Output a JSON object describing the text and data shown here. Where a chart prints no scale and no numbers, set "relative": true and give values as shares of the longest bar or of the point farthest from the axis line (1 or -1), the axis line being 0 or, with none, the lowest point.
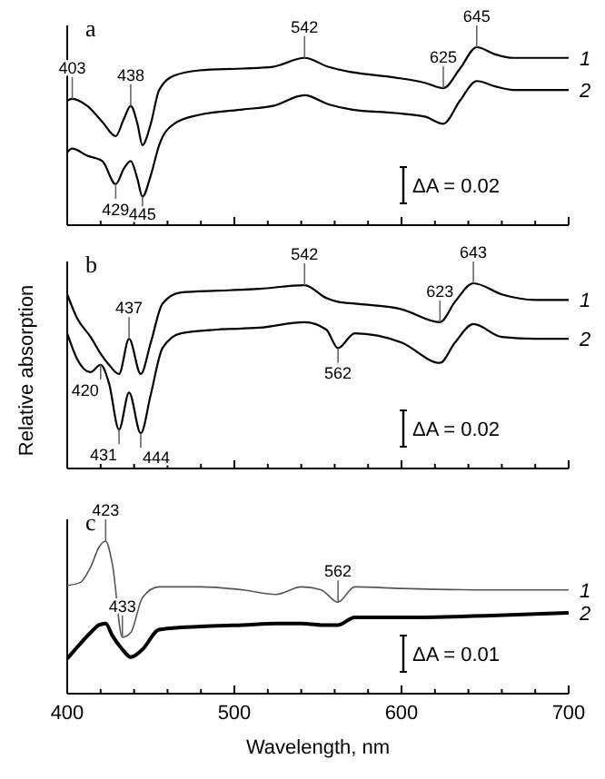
{
  "chart_data": [
    {
      "type": "line",
      "title": "a",
      "relative": true,
      "xlim": [
        400,
        700
      ],
      "tick_labels": false,
      "xticks": [
        400,
        {
          "value": 420,
          "label": null
        },
        {
          "value": 440,
          "label": null
        },
        {
          "value": 460,
          "label": null
        },
        {
          "value": 480,
          "label": null
        },
        500,
        {
          "value": 520,
          "label": null
        },
        {
          "value": 540,
          "label": null
        },
        {
          "value": 560,
          "label": null
        },
        {
          "value": 580,
          "label": null
        },
        600,
        {
          "value": 620,
          "label": null
        },
        {
          "value": 640,
          "label": null
        },
        {
          "value": 660,
          "label": null
        },
        {
          "value": 680,
          "label": null
        },
        700
      ],
      "x": [
        400,
        403,
        412,
        421,
        429,
        434,
        438,
        442,
        445,
        450,
        455,
        464,
        479,
        505,
        523,
        542,
        556,
        570,
        596,
        614,
        625,
        635,
        645,
        656,
        667,
        685,
        700
      ],
      "series": [
        {
          "name": "1",
          "color": "#000000",
          "values": [
            0.7,
            0.71,
            0.67,
            0.58,
            0.5,
            0.6,
            0.67,
            0.57,
            0.45,
            0.57,
            0.76,
            0.84,
            0.87,
            0.88,
            0.89,
            0.94,
            0.89,
            0.86,
            0.83,
            0.8,
            0.77,
            0.88,
            1.0,
            0.96,
            0.94,
            0.94,
            0.94
          ]
        },
        {
          "name": "2",
          "color": "#000000",
          "values": [
            0.41,
            0.43,
            0.39,
            0.36,
            0.23,
            0.32,
            0.36,
            0.26,
            0.16,
            0.28,
            0.45,
            0.57,
            0.62,
            0.65,
            0.67,
            0.73,
            0.68,
            0.65,
            0.63,
            0.61,
            0.57,
            0.7,
            0.81,
            0.78,
            0.76,
            0.76,
            0.76
          ]
        }
      ],
      "annotations": [
        {
          "text": "403",
          "x": 403,
          "y": 0.71
        },
        {
          "text": "438",
          "x": 438,
          "y": 0.67
        },
        {
          "text": "542",
          "x": 542,
          "y": 0.94
        },
        {
          "text": "625",
          "x": 625,
          "y": 0.77
        },
        {
          "text": "645",
          "x": 645,
          "y": 1.0
        },
        {
          "text": "429",
          "x": 429,
          "y": 0.23
        },
        {
          "text": "445",
          "x": 445,
          "y": 0.16
        },
        "ΔA = 0.02"
      ]
    },
    {
      "type": "line",
      "title": "b",
      "relative": true,
      "xlim": [
        400,
        700
      ],
      "tick_labels": false,
      "ylabel": "Relative absorption",
      "xticks": [
        400,
        {
          "value": 420,
          "label": null
        },
        {
          "value": 440,
          "label": null
        },
        {
          "value": 460,
          "label": null
        },
        {
          "value": 480,
          "label": null
        },
        500,
        {
          "value": 520,
          "label": null
        },
        {
          "value": 540,
          "label": null
        },
        {
          "value": 560,
          "label": null
        },
        {
          "value": 580,
          "label": null
        },
        600,
        {
          "value": 620,
          "label": null
        },
        {
          "value": 640,
          "label": null
        },
        {
          "value": 660,
          "label": null
        },
        {
          "value": 680,
          "label": null
        },
        700
      ],
      "x": [
        400,
        406,
        414,
        420,
        425,
        431,
        437,
        444,
        450,
        457,
        468,
        490,
        515,
        542,
        555,
        562,
        572,
        600,
        623,
        632,
        643,
        660,
        680,
        700
      ],
      "series": [
        {
          "name": "1",
          "color": "#000000",
          "values": [
            0.94,
            0.81,
            0.71,
            0.62,
            0.56,
            0.51,
            0.7,
            0.51,
            0.68,
            0.89,
            0.95,
            0.96,
            0.97,
            0.99,
            0.92,
            0.9,
            0.89,
            0.86,
            0.79,
            0.9,
            1.0,
            0.94,
            0.91,
            0.91
          ]
        },
        {
          "name": "2",
          "color": "#000000",
          "values": [
            0.73,
            0.59,
            0.52,
            0.56,
            0.46,
            0.21,
            0.41,
            0.19,
            0.4,
            0.65,
            0.73,
            0.75,
            0.76,
            0.79,
            0.75,
            0.65,
            0.73,
            0.68,
            0.57,
            0.68,
            0.78,
            0.71,
            0.7,
            0.7
          ]
        }
      ],
      "annotations": [
        {
          "text": "542",
          "x": 542,
          "y": 0.99
        },
        {
          "text": "437",
          "x": 437,
          "y": 0.7
        },
        {
          "text": "623",
          "x": 623,
          "y": 0.79
        },
        {
          "text": "643",
          "x": 643,
          "y": 1.0
        },
        {
          "text": "420",
          "x": 420,
          "y": 0.56
        },
        {
          "text": "431",
          "x": 431,
          "y": 0.21
        },
        {
          "text": "444",
          "x": 444,
          "y": 0.19
        },
        {
          "text": "562",
          "x": 562,
          "y": 0.65
        },
        "ΔA = 0.02"
      ]
    },
    {
      "type": "line",
      "title": "c",
      "relative": true,
      "xlim": [
        400,
        700
      ],
      "tick_labels": "x",
      "xlabel": "Wavelength, nm",
      "xticks": [
        400,
        {
          "value": 420,
          "label": null
        },
        {
          "value": 440,
          "label": null
        },
        {
          "value": 460,
          "label": null
        },
        {
          "value": 480,
          "label": null
        },
        500,
        {
          "value": 520,
          "label": null
        },
        {
          "value": 540,
          "label": null
        },
        {
          "value": 560,
          "label": null
        },
        {
          "value": 580,
          "label": null
        },
        600,
        {
          "value": 620,
          "label": null
        },
        {
          "value": 640,
          "label": null
        },
        {
          "value": 660,
          "label": null
        },
        {
          "value": 680,
          "label": null
        },
        700
      ],
      "x": [
        400,
        408,
        414,
        419,
        423,
        427,
        433,
        438,
        445,
        455,
        480,
        505,
        525,
        540,
        552,
        562,
        572,
        600,
        650,
        700
      ],
      "series": [
        {
          "name": "1",
          "color": "#555555",
          "values": [
            0.71,
            0.73,
            0.83,
            0.96,
            1.0,
            0.85,
            0.37,
            0.4,
            0.63,
            0.7,
            0.7,
            0.68,
            0.65,
            0.7,
            0.68,
            0.6,
            0.7,
            0.69,
            0.68,
            0.68
          ]
        },
        {
          "name": "2",
          "color": "#000000",
          "values": [
            0.23,
            0.33,
            0.4,
            0.45,
            0.46,
            0.38,
            0.29,
            0.24,
            0.29,
            0.42,
            0.44,
            0.45,
            0.46,
            0.46,
            0.45,
            0.45,
            0.5,
            0.5,
            0.51,
            0.53
          ]
        }
      ],
      "annotations": [
        {
          "text": "423",
          "x": 423,
          "y": 1.0
        },
        {
          "text": "433",
          "x": 433,
          "y": 0.37
        },
        {
          "text": "562",
          "x": 562,
          "y": 0.6
        },
        "ΔA = 0.01"
      ]
    }
  ]
}
